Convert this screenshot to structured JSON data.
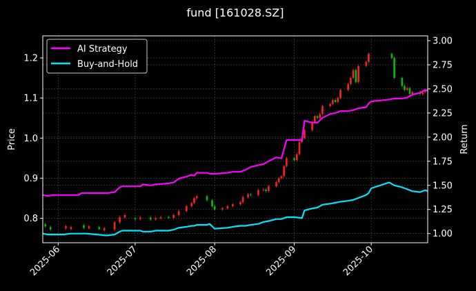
{
  "chart_data": {
    "type": "line",
    "title": "fund [161028.SZ]",
    "ylabel_left": "Price",
    "ylabel_right": "Return",
    "ylim_left": [
      0.739,
      1.255
    ],
    "ylim_right": [
      0.905,
      3.05
    ],
    "grid": true,
    "legend": "top-left",
    "x_range": [
      "2025-05-26",
      "2025-10-23"
    ],
    "x_ticks": [
      "2025-06",
      "2025-07",
      "2025-08",
      "2025-09",
      "2025-10"
    ],
    "x_tick_dates": [
      "2025-06-01",
      "2025-07-01",
      "2025-08-01",
      "2025-09-01",
      "2025-10-01"
    ],
    "y_ticks_left": [
      0.8,
      0.9,
      1.0,
      1.1,
      1.2
    ],
    "y_ticks_right": [
      1.0,
      1.25,
      1.5,
      1.75,
      2.0,
      2.25,
      2.5,
      2.75,
      3.0
    ],
    "series": [
      {
        "name": "AI Strategy",
        "color": "#ff00ff",
        "axis": "right",
        "x": [
          "2025-05-26",
          "2025-05-28",
          "2025-05-30",
          "2025-06-03",
          "2025-06-06",
          "2025-06-09",
          "2025-06-10",
          "2025-06-12",
          "2025-06-16",
          "2025-06-20",
          "2025-06-23",
          "2025-06-25",
          "2025-06-26",
          "2025-06-27",
          "2025-07-01",
          "2025-07-03",
          "2025-07-04",
          "2025-07-07",
          "2025-07-09",
          "2025-07-14",
          "2025-07-16",
          "2025-07-18",
          "2025-07-21",
          "2025-07-23",
          "2025-07-24",
          "2025-07-25",
          "2025-07-29",
          "2025-07-30",
          "2025-08-01",
          "2025-08-06",
          "2025-08-08",
          "2025-08-11",
          "2025-08-13",
          "2025-08-15",
          "2025-08-18",
          "2025-08-20",
          "2025-08-22",
          "2025-08-25",
          "2025-08-27",
          "2025-08-29",
          "2025-09-01",
          "2025-09-04",
          "2025-09-05",
          "2025-09-08",
          "2025-09-10",
          "2025-09-12",
          "2025-09-15",
          "2025-09-17",
          "2025-09-19",
          "2025-09-22",
          "2025-09-24",
          "2025-09-26",
          "2025-09-29",
          "2025-09-30",
          "2025-10-01",
          "2025-10-08",
          "2025-10-10",
          "2025-10-13",
          "2025-10-15",
          "2025-10-17",
          "2025-10-20",
          "2025-10-22",
          "2025-10-23"
        ],
        "values": [
          1.4,
          1.39,
          1.4,
          1.4,
          1.4,
          1.4,
          1.42,
          1.42,
          1.42,
          1.42,
          1.43,
          1.48,
          1.49,
          1.49,
          1.49,
          1.49,
          1.51,
          1.5,
          1.51,
          1.52,
          1.53,
          1.57,
          1.59,
          1.61,
          1.6,
          1.63,
          1.63,
          1.62,
          1.62,
          1.63,
          1.64,
          1.64,
          1.66,
          1.69,
          1.71,
          1.72,
          1.75,
          1.79,
          1.78,
          1.97,
          1.97,
          1.97,
          2.17,
          2.15,
          2.15,
          2.2,
          2.24,
          2.25,
          2.27,
          2.27,
          2.28,
          2.3,
          2.31,
          2.35,
          2.37,
          2.39,
          2.4,
          2.4,
          2.41,
          2.44,
          2.46,
          2.49,
          2.48
        ]
      },
      {
        "name": "Buy-and-Hold",
        "color": "#00e5ff",
        "axis": "right",
        "x": [
          "2025-05-26",
          "2025-05-28",
          "2025-05-30",
          "2025-06-03",
          "2025-06-06",
          "2025-06-09",
          "2025-06-10",
          "2025-06-12",
          "2025-06-16",
          "2025-06-20",
          "2025-06-23",
          "2025-06-25",
          "2025-06-26",
          "2025-06-27",
          "2025-07-01",
          "2025-07-03",
          "2025-07-04",
          "2025-07-07",
          "2025-07-09",
          "2025-07-14",
          "2025-07-16",
          "2025-07-18",
          "2025-07-21",
          "2025-07-23",
          "2025-07-24",
          "2025-07-25",
          "2025-07-29",
          "2025-07-30",
          "2025-08-01",
          "2025-08-06",
          "2025-08-08",
          "2025-08-11",
          "2025-08-13",
          "2025-08-15",
          "2025-08-18",
          "2025-08-20",
          "2025-08-22",
          "2025-08-25",
          "2025-08-27",
          "2025-08-29",
          "2025-09-01",
          "2025-09-04",
          "2025-09-05",
          "2025-09-08",
          "2025-09-10",
          "2025-09-12",
          "2025-09-15",
          "2025-09-17",
          "2025-09-19",
          "2025-09-22",
          "2025-09-24",
          "2025-09-26",
          "2025-09-29",
          "2025-09-30",
          "2025-10-01",
          "2025-10-08",
          "2025-10-10",
          "2025-10-13",
          "2025-10-15",
          "2025-10-17",
          "2025-10-20",
          "2025-10-22",
          "2025-10-23"
        ],
        "values": [
          1.0,
          0.99,
          0.99,
          0.99,
          1.0,
          1.0,
          1.0,
          1.0,
          0.99,
          0.98,
          0.99,
          1.02,
          1.03,
          1.03,
          1.03,
          1.03,
          1.02,
          1.02,
          1.03,
          1.03,
          1.04,
          1.06,
          1.07,
          1.08,
          1.08,
          1.09,
          1.09,
          1.1,
          1.05,
          1.06,
          1.07,
          1.08,
          1.08,
          1.09,
          1.1,
          1.12,
          1.13,
          1.15,
          1.15,
          1.17,
          1.17,
          1.16,
          1.24,
          1.26,
          1.27,
          1.3,
          1.31,
          1.32,
          1.33,
          1.34,
          1.35,
          1.37,
          1.4,
          1.42,
          1.47,
          1.53,
          1.5,
          1.48,
          1.46,
          1.44,
          1.43,
          1.45,
          1.44
        ]
      }
    ],
    "candles": {
      "axis": "left",
      "x": [
        "2025-05-27",
        "2025-05-29",
        "2025-06-04",
        "2025-06-06",
        "2025-06-11",
        "2025-06-13",
        "2025-06-17",
        "2025-06-19",
        "2025-06-23",
        "2025-06-25",
        "2025-06-27",
        "2025-07-01",
        "2025-07-03",
        "2025-07-07",
        "2025-07-09",
        "2025-07-11",
        "2025-07-14",
        "2025-07-16",
        "2025-07-18",
        "2025-07-21",
        "2025-07-23",
        "2025-07-24",
        "2025-07-25",
        "2025-07-29",
        "2025-07-31",
        "2025-08-01",
        "2025-08-04",
        "2025-08-06",
        "2025-08-08",
        "2025-08-11",
        "2025-08-12",
        "2025-08-14",
        "2025-08-15",
        "2025-08-18",
        "2025-08-20",
        "2025-08-21",
        "2025-08-22",
        "2025-08-25",
        "2025-08-26",
        "2025-08-27",
        "2025-08-28",
        "2025-08-29",
        "2025-09-01",
        "2025-09-02",
        "2025-09-03",
        "2025-09-04",
        "2025-09-05",
        "2025-09-08",
        "2025-09-09",
        "2025-09-10",
        "2025-09-11",
        "2025-09-12",
        "2025-09-15",
        "2025-09-16",
        "2025-09-17",
        "2025-09-18",
        "2025-09-19",
        "2025-09-22",
        "2025-09-23",
        "2025-09-24",
        "2025-09-25",
        "2025-09-26",
        "2025-09-29",
        "2025-09-30",
        "2025-10-09",
        "2025-10-10",
        "2025-10-13",
        "2025-10-14",
        "2025-10-15",
        "2025-10-16",
        "2025-10-17",
        "2025-10-20",
        "2025-10-21",
        "2025-10-22"
      ],
      "open": [
        0.785,
        0.778,
        0.775,
        0.773,
        0.782,
        0.775,
        0.778,
        0.77,
        0.772,
        0.79,
        0.802,
        0.8,
        0.798,
        0.802,
        0.797,
        0.8,
        0.803,
        0.801,
        0.808,
        0.818,
        0.83,
        0.838,
        0.85,
        0.855,
        0.845,
        0.83,
        0.822,
        0.825,
        0.83,
        0.835,
        0.84,
        0.853,
        0.86,
        0.858,
        0.87,
        0.872,
        0.868,
        0.88,
        0.89,
        0.9,
        0.905,
        0.93,
        0.95,
        0.945,
        0.96,
        0.99,
        1.0,
        1.02,
        1.04,
        1.055,
        1.05,
        1.06,
        1.08,
        1.085,
        1.095,
        1.09,
        1.1,
        1.12,
        1.135,
        1.15,
        1.17,
        1.14,
        1.18,
        1.19,
        1.21,
        1.2,
        1.15,
        1.13,
        1.12,
        1.125,
        1.11,
        1.115,
        1.11,
        1.115
      ],
      "close": [
        0.78,
        0.772,
        0.78,
        0.778,
        0.776,
        0.78,
        0.773,
        0.775,
        0.79,
        0.803,
        0.808,
        0.798,
        0.802,
        0.797,
        0.8,
        0.803,
        0.801,
        0.808,
        0.818,
        0.83,
        0.838,
        0.85,
        0.855,
        0.845,
        0.83,
        0.822,
        0.825,
        0.83,
        0.835,
        0.84,
        0.853,
        0.86,
        0.858,
        0.87,
        0.872,
        0.868,
        0.88,
        0.89,
        0.9,
        0.905,
        0.93,
        0.95,
        0.945,
        0.96,
        0.99,
        1.0,
        1.02,
        1.04,
        1.055,
        1.05,
        1.06,
        1.08,
        1.085,
        1.095,
        1.09,
        1.1,
        1.12,
        1.135,
        1.15,
        1.17,
        1.14,
        1.18,
        1.19,
        1.21,
        1.2,
        1.15,
        1.13,
        1.12,
        1.125,
        1.11,
        1.115,
        1.11,
        1.115,
        1.12
      ],
      "up_color": "#ff2020",
      "down_color": "#00c000"
    }
  }
}
